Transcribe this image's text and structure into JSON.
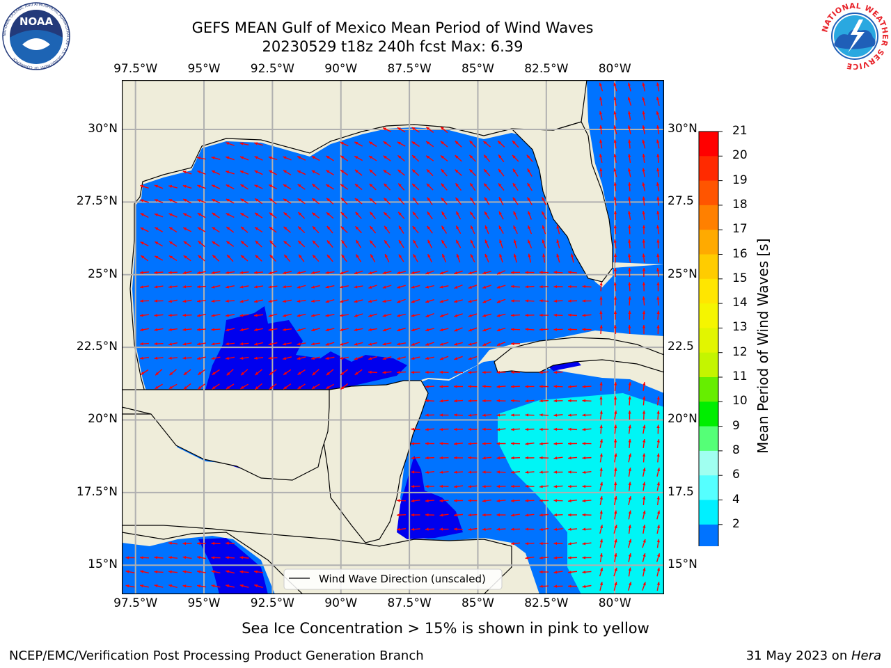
{
  "header": {
    "title_line1": "GEFS MEAN Gulf of Mexico Mean Period of Wind Waves",
    "title_line2": "20230529 t18z 240h fcst   Max: 6.39"
  },
  "logos": {
    "noaa": {
      "text": "NOAA",
      "ring_text": "NATIONAL OCEANIC AND ATMOSPHERIC ADMINISTRATION · U.S. DEPARTMENT OF COMMERCE",
      "colors": {
        "blue": "#1d64b4",
        "navy": "#233a7a"
      }
    },
    "nws": {
      "ring_text": "NATIONAL WEATHER SERVICE",
      "colors": {
        "red": "#e8232a",
        "blue": "#1f5fb8",
        "cyan": "#2aa8e0"
      }
    }
  },
  "map": {
    "lon_labels": [
      "97.5°W",
      "95°W",
      "92.5°W",
      "90°W",
      "87.5°W",
      "85°W",
      "82.5°W",
      "80°W"
    ],
    "lon_values": [
      -97.5,
      -95,
      -92.5,
      -90,
      -87.5,
      -85,
      -82.5,
      -80
    ],
    "lat_labels_left": [
      "30°N",
      "27.5°N",
      "25°N",
      "22.5°N",
      "20°N",
      "17.5°N",
      "15°N"
    ],
    "lat_labels_right": [
      "30°N",
      "27.5",
      "25°N",
      "22.5",
      "20°N",
      "17.5",
      "15°N"
    ],
    "lat_values": [
      30,
      27.5,
      25,
      22.5,
      20,
      17.5,
      15
    ],
    "extent": {
      "lon_min": -98,
      "lon_max": -78.2,
      "lat_min": 14,
      "lat_max": 31.7
    },
    "legend_label": "Wind Wave Direction (unscaled)",
    "colors": {
      "land": "#efedda",
      "ocean_2_4": "#0073ff",
      "ocean_below_2": "#0000ee",
      "ocean_4_6": "#00f5f5",
      "arrows": "#ff0000",
      "grid": "#b0b0b0"
    }
  },
  "colorbar": {
    "label": "Mean Period of Wind Waves [s]",
    "ticks": [
      "21",
      "20",
      "19",
      "18",
      "17",
      "16",
      "15",
      "14",
      "13",
      "12",
      "11",
      "10",
      "9",
      "8",
      "6",
      "4",
      "2"
    ],
    "segments_top_to_bottom": [
      "#ff0000",
      "#ff2a00",
      "#ff5500",
      "#ff8000",
      "#ffaa00",
      "#ffcc00",
      "#ffe600",
      "#f5f500",
      "#e2f500",
      "#c4f500",
      "#66ee00",
      "#00ee00",
      "#55ff77",
      "#a0fff0",
      "#55ffff",
      "#00f0ff",
      "#0073ff"
    ],
    "extend_color": "#0000ee"
  },
  "footer": {
    "subtitle": "Sea Ice Concentration > 15% is shown in pink to yellow",
    "left": "NCEP/EMC/Verification Post Processing Product Generation Branch",
    "right_date": "31 May 2023 on ",
    "right_machine": "Hera"
  }
}
